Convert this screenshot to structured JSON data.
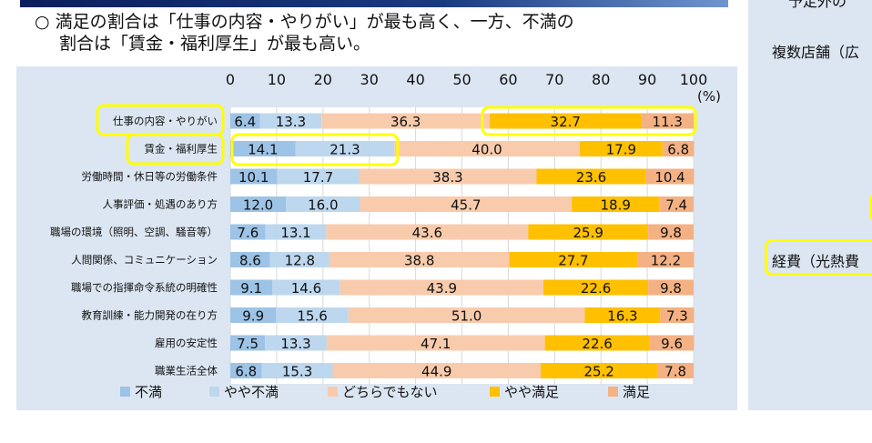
{
  "headline": {
    "line1": "○ 満足の割合は「仕事の内容・やりがい」が最も高く、一方、不満の",
    "line2": "割合は「賃金・福利厚生」が最も高い。"
  },
  "right_panel": {
    "text_top": "予定外の",
    "text_1": "複数店舗（広",
    "text_2": "経費（光熱費"
  },
  "chart_data": {
    "type": "bar",
    "orientation": "horizontal",
    "stacked": true,
    "xlim": [
      0,
      100
    ],
    "x_ticks": [
      "0",
      "10",
      "20",
      "30",
      "40",
      "50",
      "60",
      "70",
      "80",
      "90",
      "100"
    ],
    "x_unit": "(%)",
    "grid": true,
    "legend_placement": "bottom",
    "categories": [
      "仕事の内容・やりがい",
      "賃金・福利厚生",
      "労働時間・休日等の労働条件",
      "人事評価・処遇のあり方",
      "職場の環境（照明、空調、騒音等）",
      "人間関係、コミュニケーション",
      "職場での指揮命令系統の明確性",
      "教育訓練・能力開発の在り方",
      "雇用の安定性",
      "職業生活全体"
    ],
    "series": [
      {
        "name": "不満",
        "color": "#9dc3e6",
        "values": [
          6.4,
          14.1,
          10.1,
          12.0,
          7.6,
          8.6,
          9.1,
          9.9,
          7.5,
          6.8
        ]
      },
      {
        "name": "やや不満",
        "color": "#bdd7ee",
        "values": [
          13.3,
          21.3,
          17.7,
          16.0,
          13.1,
          12.8,
          14.6,
          15.6,
          13.3,
          15.3
        ]
      },
      {
        "name": "どちらでもない",
        "color": "#f8cbad",
        "values": [
          36.3,
          40.0,
          38.3,
          45.7,
          43.6,
          38.8,
          43.9,
          51.0,
          47.1,
          44.9
        ]
      },
      {
        "name": "やや満足",
        "color": "#ffc000",
        "values": [
          32.7,
          17.9,
          23.6,
          18.9,
          25.9,
          27.7,
          22.6,
          16.3,
          22.6,
          25.2
        ]
      },
      {
        "name": "満足",
        "color": "#f4b183",
        "values": [
          11.3,
          6.8,
          10.4,
          7.4,
          9.8,
          12.2,
          9.8,
          7.3,
          9.6,
          7.8
        ]
      }
    ],
    "highlight_color": "#ffff00"
  }
}
